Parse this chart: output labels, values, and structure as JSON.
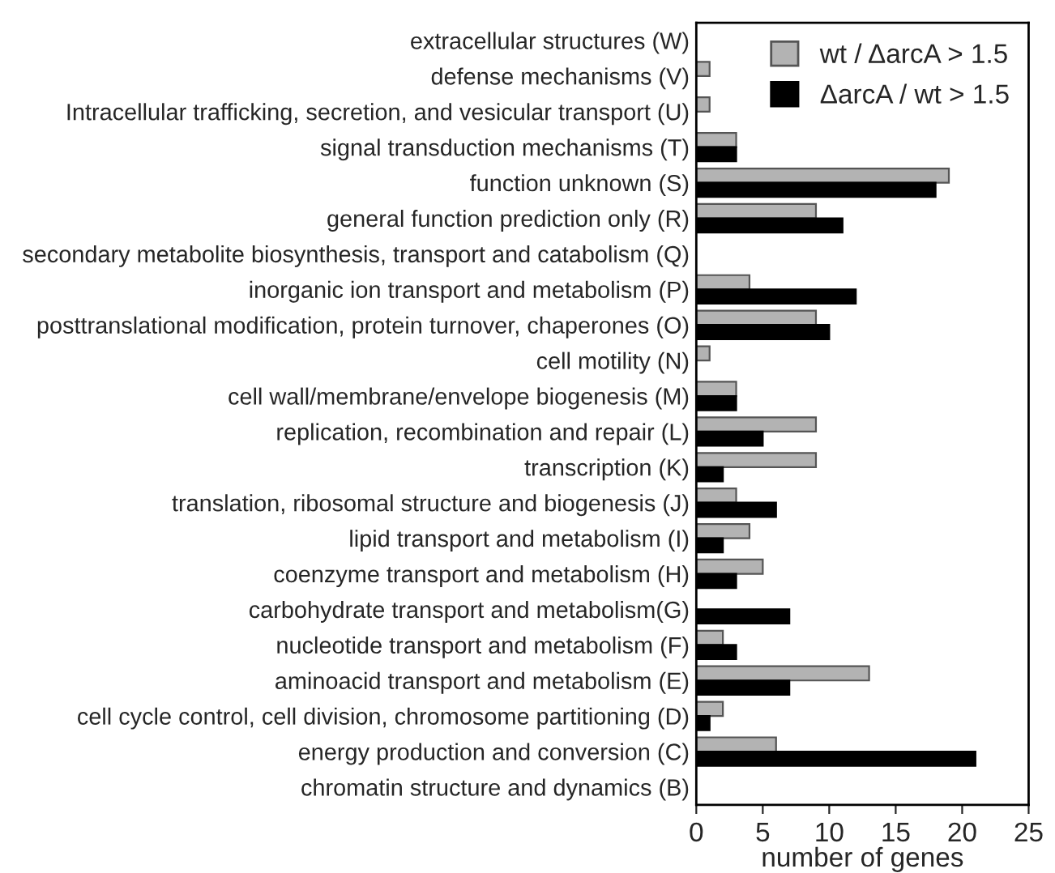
{
  "chart_data": {
    "type": "bar",
    "orientation": "horizontal",
    "xlabel": "number of genes",
    "categories": [
      "extracellular structures (W)",
      "defense mechanisms (V)",
      "Intracellular trafficking, secretion, and vesicular transport (U)",
      "signal transduction mechanisms (T)",
      "function unknown (S)",
      "general function prediction only (R)",
      "secondary metabolite biosynthesis, transport and catabolism (Q)",
      "inorganic ion transport and metabolism (P)",
      "posttranslational modification, protein turnover, chaperones (O)",
      "cell motility (N)",
      "cell wall/membrane/envelope biogenesis (M)",
      "replication, recombination and repair (L)",
      "transcription (K)",
      "translation, ribosomal structure and biogenesis (J)",
      "lipid transport and metabolism (I)",
      "coenzyme transport and metabolism (H)",
      "carbohydrate transport and metabolism(G)",
      "nucleotide transport and metabolism (F)",
      "aminoacid transport and metabolism (E)",
      "cell cycle control, cell division, chromosome partitioning (D)",
      "energy production and conversion (C)",
      "chromatin structure and dynamics (B)"
    ],
    "series": [
      {
        "name": "wt / ΔarcA > 1.5",
        "color": "#b3b3b3",
        "values": [
          0,
          1,
          1,
          3,
          19,
          9,
          0,
          4,
          9,
          1,
          3,
          9,
          9,
          3,
          4,
          5,
          0,
          2,
          13,
          2,
          6,
          0
        ]
      },
      {
        "name": "ΔarcA / wt > 1.5",
        "color": "#000000",
        "values": [
          0,
          0,
          0,
          3,
          18,
          11,
          0,
          12,
          10,
          0,
          3,
          5,
          2,
          6,
          2,
          3,
          7,
          3,
          7,
          1,
          21,
          0
        ]
      }
    ],
    "xlim": [
      0,
      25
    ],
    "xticks": [
      0,
      5,
      10,
      15,
      20,
      25
    ],
    "legend": "top right",
    "grid": false
  }
}
